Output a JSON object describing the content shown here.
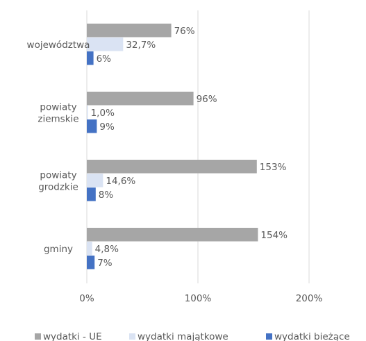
{
  "chart_data": {
    "type": "bar",
    "orientation": "horizontal",
    "categories": [
      "województwa",
      "powiaty ziemskie",
      "powiaty grodzkie",
      "gminy"
    ],
    "category_lines": [
      [
        "województwa"
      ],
      [
        "powiaty",
        "ziemskie"
      ],
      [
        "powiaty",
        "grodzkie"
      ],
      [
        "gminy"
      ]
    ],
    "series": [
      {
        "name": "wydatki - UE",
        "color": "#a6a6a6",
        "values": [
          76,
          96,
          153,
          154
        ],
        "labels": [
          "76%",
          "96%",
          "153%",
          "154%"
        ]
      },
      {
        "name": "wydatki majątkowe",
        "color": "#dae3f3",
        "values": [
          32.7,
          1.0,
          14.6,
          4.8
        ],
        "labels": [
          "32,7%",
          "1,0%",
          "14,6%",
          "4,8%"
        ]
      },
      {
        "name": "wydatki bieżące",
        "color": "#4472c4",
        "values": [
          6,
          9,
          8,
          7
        ],
        "labels": [
          "6%",
          "9%",
          "8%",
          "7%"
        ]
      }
    ],
    "x_ticks": [
      0,
      100,
      200
    ],
    "x_tick_labels": [
      "0%",
      "100%",
      "200%"
    ],
    "xlim": [
      0,
      200
    ],
    "grid": "vertical",
    "legend": "bottom"
  }
}
